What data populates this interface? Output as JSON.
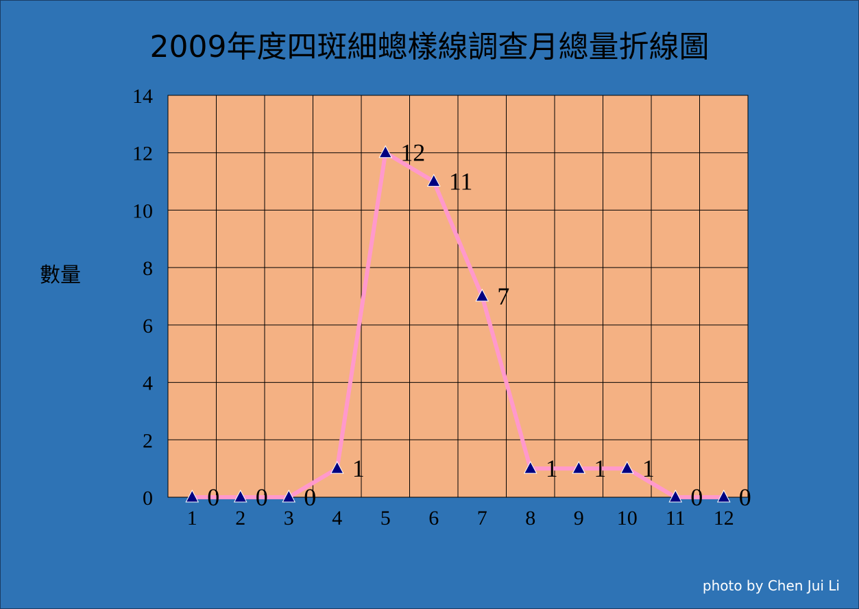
{
  "chart_data": {
    "type": "line",
    "title": "2009年度四斑細蟌樣線調查月總量折線圖",
    "xlabel": "",
    "ylabel": "數量",
    "categories": [
      "1",
      "2",
      "3",
      "4",
      "5",
      "6",
      "7",
      "8",
      "9",
      "10",
      "11",
      "12"
    ],
    "series": [
      {
        "values": [
          0,
          0,
          0,
          1,
          12,
          11,
          7,
          1,
          1,
          1,
          0,
          0
        ]
      }
    ],
    "ylim": [
      0,
      14
    ],
    "yticks": [
      0,
      2,
      4,
      6,
      8,
      10,
      12,
      14
    ],
    "grid": true,
    "legend": "none",
    "marker": "triangle",
    "data_labels": true,
    "colors": {
      "background": "#2e73b5",
      "plot_area": "#f4b183",
      "line": "#ff99cc",
      "marker": "#000080",
      "grid": "#000000"
    }
  },
  "credit": "photo by Chen Jui Li"
}
